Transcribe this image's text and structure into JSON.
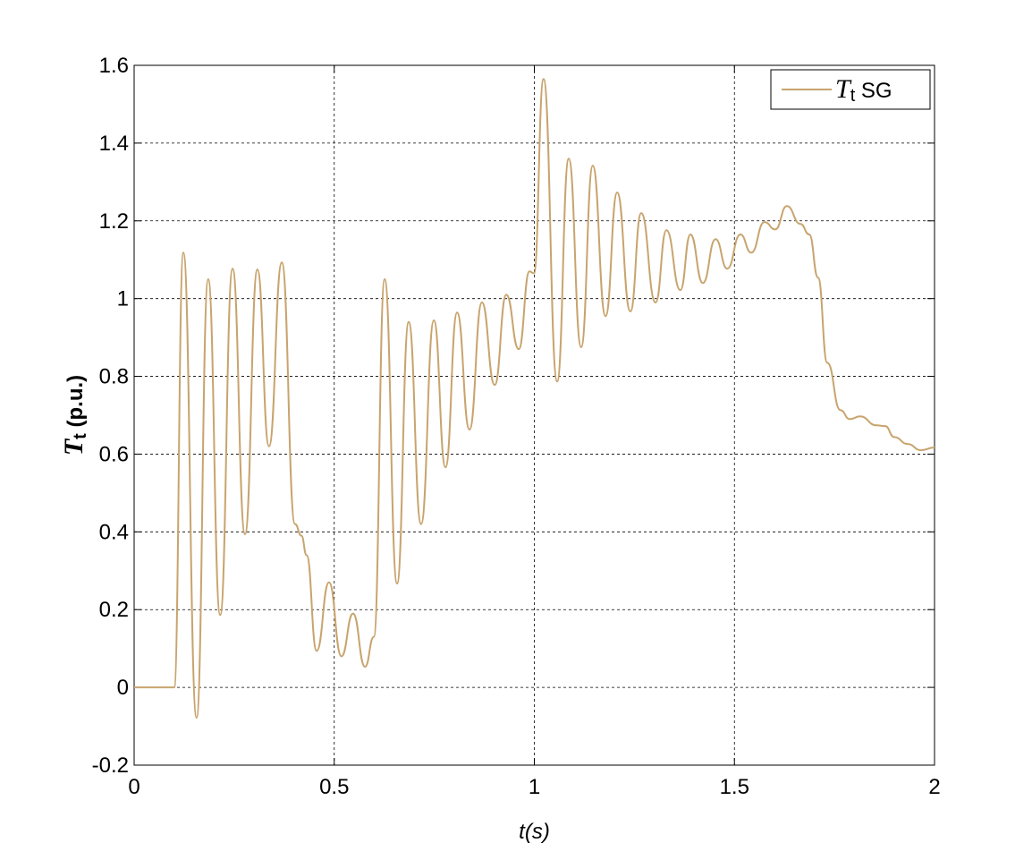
{
  "chart_data": {
    "type": "line",
    "xlabel": "t(s)",
    "ylabel": "Tt (p.u.)",
    "x": [
      0,
      0.1,
      0.123,
      0.156,
      0.185,
      0.215,
      0.246,
      0.277,
      0.308,
      0.337,
      0.369,
      0.402,
      0.418,
      0.431,
      0.456,
      0.487,
      0.518,
      0.547,
      0.577,
      0.599,
      0.626,
      0.657,
      0.686,
      0.717,
      0.749,
      0.778,
      0.807,
      0.838,
      0.869,
      0.901,
      0.93,
      0.961,
      0.988,
      0.999,
      1.023,
      1.057,
      1.086,
      1.117,
      1.146,
      1.178,
      1.207,
      1.24,
      1.267,
      1.303,
      1.33,
      1.365,
      1.39,
      1.421,
      1.453,
      1.482,
      1.515,
      1.542,
      1.575,
      1.602,
      1.631,
      1.665,
      1.687,
      1.709,
      1.732,
      1.765,
      1.788,
      1.814,
      1.855,
      1.877,
      1.899,
      1.933,
      1.966,
      2.0
    ],
    "series": [
      {
        "name": "Tt SG",
        "color": "#c8a46e",
        "values": [
          0,
          0,
          1.118,
          -0.078,
          1.05,
          0.186,
          1.077,
          0.394,
          1.075,
          0.62,
          1.093,
          0.42,
          0.39,
          0.34,
          0.094,
          0.27,
          0.08,
          0.19,
          0.053,
          0.13,
          1.05,
          0.267,
          0.94,
          0.42,
          0.944,
          0.566,
          0.964,
          0.663,
          0.99,
          0.778,
          1.01,
          0.87,
          1.07,
          1.065,
          1.565,
          0.787,
          1.36,
          0.875,
          1.342,
          0.955,
          1.273,
          0.967,
          1.22,
          0.99,
          1.176,
          1.022,
          1.165,
          1.04,
          1.153,
          1.077,
          1.165,
          1.118,
          1.197,
          1.178,
          1.238,
          1.192,
          1.165,
          1.054,
          0.835,
          0.713,
          0.69,
          0.697,
          0.674,
          0.672,
          0.644,
          0.626,
          0.61,
          0.617
        ]
      }
    ],
    "xlim": [
      0,
      2
    ],
    "xticks": [
      0,
      0.5,
      1,
      1.5,
      2
    ],
    "ylim": [
      -0.2,
      1.6
    ],
    "yticks": [
      -0.2,
      0,
      0.2,
      0.4,
      0.6,
      0.8,
      1,
      1.2,
      1.4,
      1.6
    ],
    "grid": true,
    "legend": "upper right"
  }
}
